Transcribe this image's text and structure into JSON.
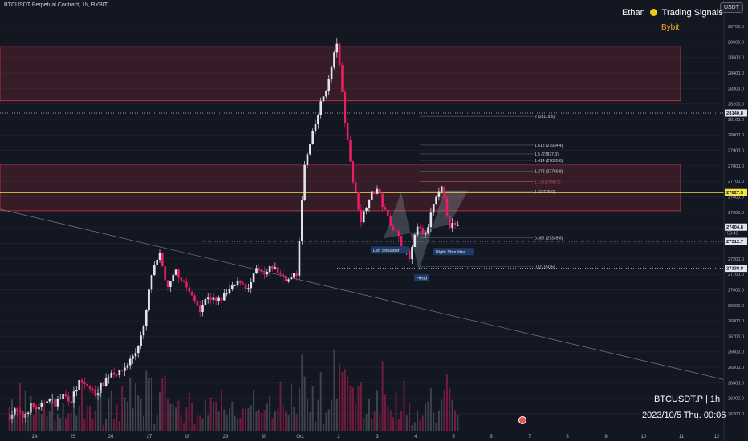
{
  "header": {
    "title": "BTCUSDT Perpetual Contract, 1h, BYBIT",
    "currency": "USDT"
  },
  "watermark": {
    "author_prefix": "Ethan",
    "author_suffix": "Trading Signals",
    "exchange": "Bybit"
  },
  "footer": {
    "symbol": "BTCUSDT.P | 1h",
    "datetime": "2023/10/5 Thu. 00:06"
  },
  "colors": {
    "background": "#131722",
    "up": "#e0e3eb",
    "down": "#e91e63",
    "zone_border": "#f23645",
    "yellow_line": "#f0e442"
  },
  "chart_data": {
    "type": "candlestick",
    "title": "BTCUSDT Perpetual Contract, 1h, BYBIT",
    "ylim": [
      26150,
      28740
    ],
    "y_ticks": [
      26200,
      26300,
      26400,
      26500,
      26600,
      26700,
      26800,
      26900,
      27000,
      27100,
      27200,
      27300,
      27400,
      27500,
      27600,
      27700,
      27800,
      27900,
      28000,
      28100,
      28200,
      28300,
      28400,
      28500,
      28600,
      28700
    ],
    "x_labels": [
      "24",
      "25",
      "26",
      "27",
      "28",
      "29",
      "30",
      "Oct",
      "2",
      "3",
      "4",
      "5",
      "6",
      "7",
      "8",
      "9",
      "10",
      "11",
      "12"
    ],
    "price_path": [
      26170,
      26220,
      26180,
      26250,
      26230,
      26300,
      26270,
      26320,
      26290,
      26400,
      26380,
      26330,
      26400,
      26470,
      26460,
      26520,
      26600,
      26750,
      27100,
      27220,
      27000,
      27120,
      27050,
      26950,
      26880,
      26960,
      26920,
      26960,
      27010,
      27060,
      27000,
      27130,
      27090,
      27150,
      27100,
      27060,
      27100,
      27800,
      28000,
      28200,
      28350,
      28600,
      28100,
      27700,
      27450,
      27600,
      27650,
      27500,
      27400,
      27300,
      27200,
      27400,
      27350,
      27550,
      27650,
      27420,
      27400
    ],
    "price_labels": [
      {
        "value": 28140.8,
        "text": "28140.8",
        "style": "white"
      },
      {
        "value": 27627.5,
        "text": "27627.5",
        "style": "yellow"
      },
      {
        "value": 27404.8,
        "text": "27404.8",
        "style": "white"
      },
      {
        "value": 27404.8,
        "text": "53:43",
        "style": "sub"
      },
      {
        "value": 27312.7,
        "text": "27312.7",
        "style": "white"
      },
      {
        "value": 27138.8,
        "text": "27138.8",
        "style": "white"
      }
    ],
    "fib_levels": [
      {
        "ratio": "2",
        "price": 28119.5,
        "label": "2 (28119.5)"
      },
      {
        "ratio": "1.618",
        "price": 27934.4,
        "label": "1.618 (27934.4)"
      },
      {
        "ratio": "1.5",
        "price": 27877.3,
        "label": "1.5 (27877.3)"
      },
      {
        "ratio": "1.414",
        "price": 27835.6,
        "label": "1.414 (27835.6)"
      },
      {
        "ratio": "1.272",
        "price": 27766.8,
        "label": "1.272 (27766.8)"
      },
      {
        "ratio": "1.13",
        "price": 27698.0,
        "label": "1.13 (27698.0)"
      },
      {
        "ratio": "1",
        "price": 27635.0,
        "label": "1 (27635.0)"
      },
      {
        "ratio": "0.382",
        "price": 27335.6,
        "label": "0.382 (27335.6)"
      },
      {
        "ratio": "0",
        "price": 27150.5,
        "label": "0 (27150.5)"
      }
    ],
    "zones": [
      {
        "top": 28570,
        "bottom": 28220
      },
      {
        "top": 27810,
        "bottom": 27510
      }
    ],
    "lines": {
      "yellow": 27627.5,
      "dotted": [
        28140.8,
        27312.7,
        27138.8
      ]
    },
    "annotations": [
      "Left Shoulder",
      "Head",
      "Right Shoulder"
    ]
  }
}
